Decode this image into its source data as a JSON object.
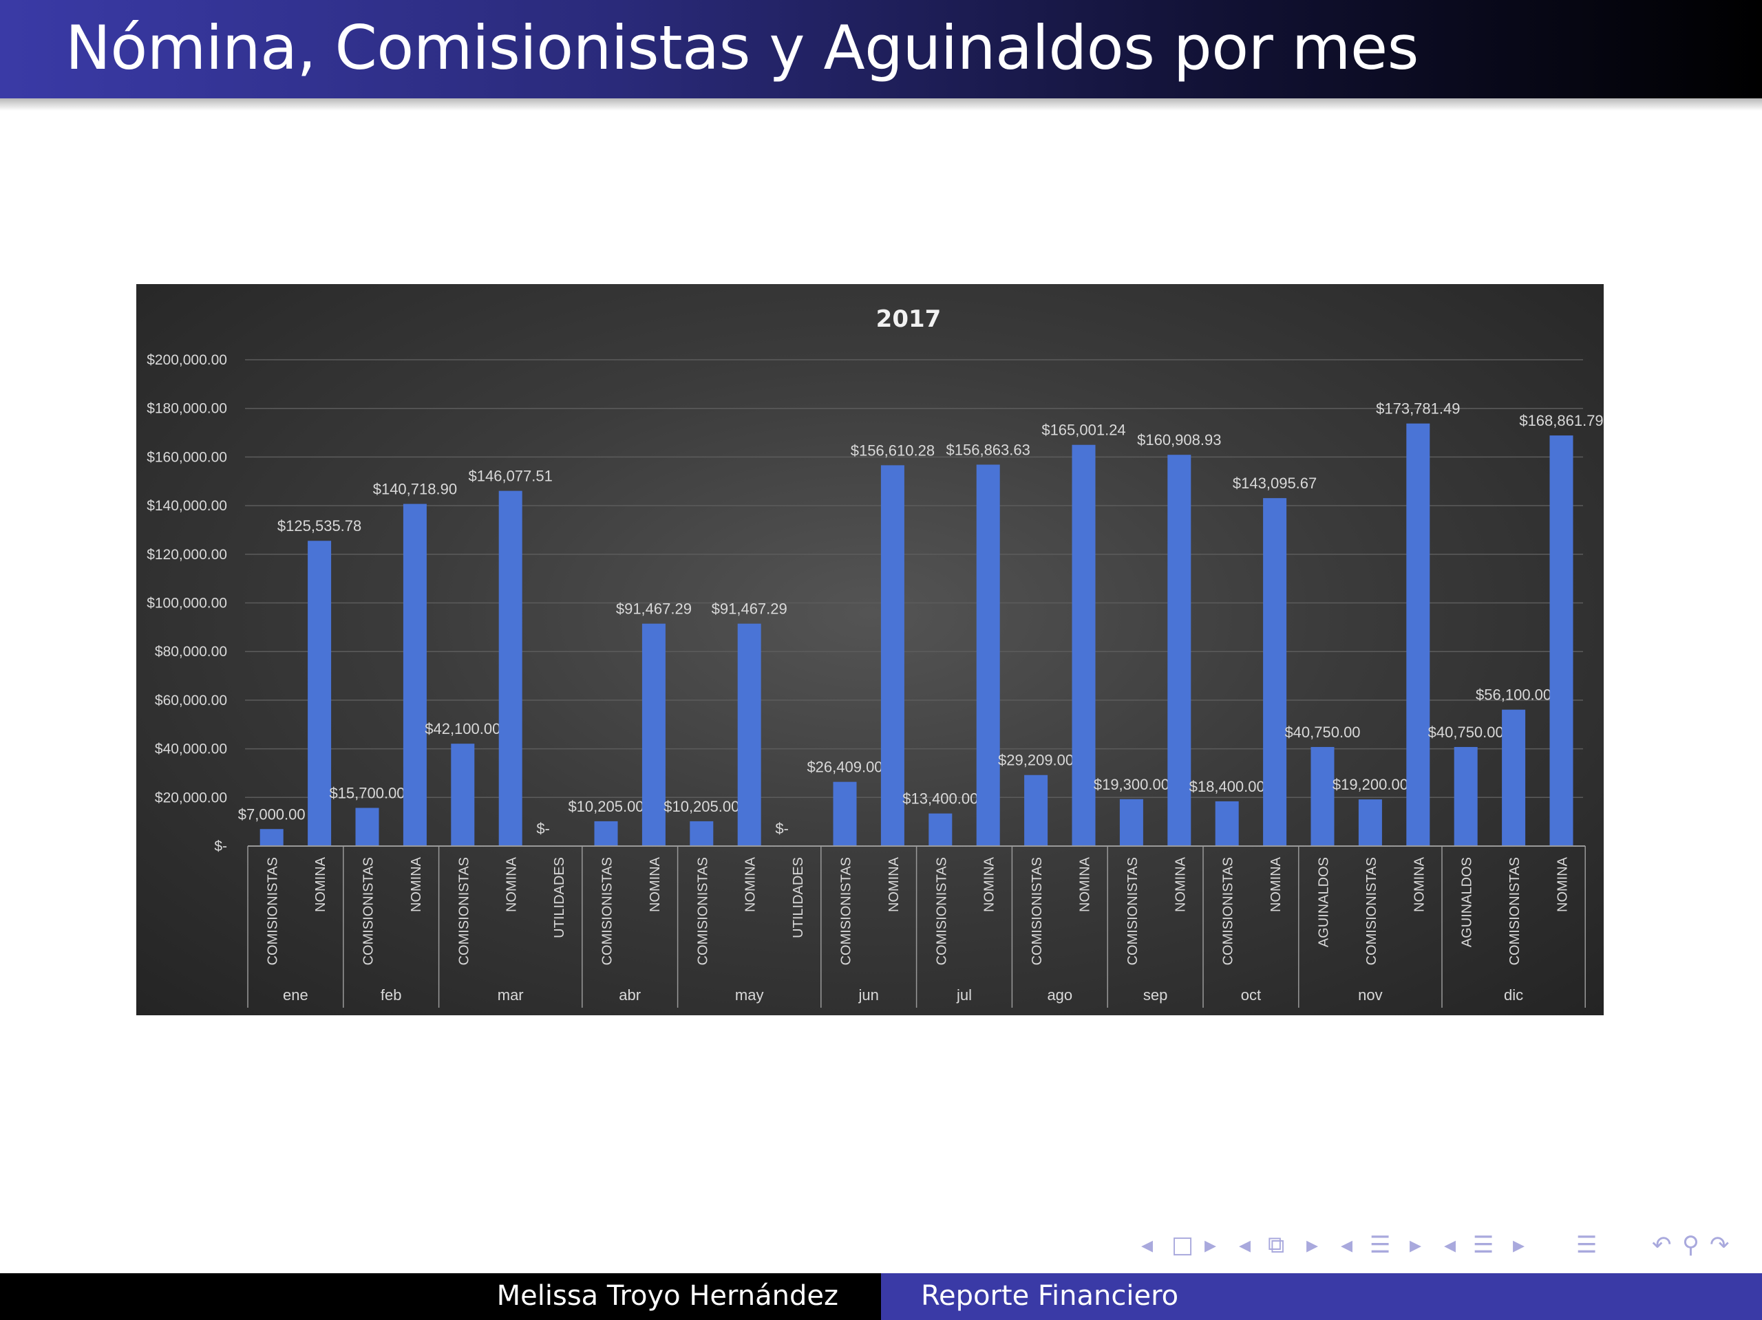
{
  "slide": {
    "title": "Nómina, Comisionistas y Aguinaldos por mes",
    "footer_author": "Melissa Troyo Hernández",
    "footer_report": "Reporte Financiero"
  },
  "colors": {
    "bar": "#4a74d6",
    "header_blue": "#3a3aa6",
    "chart_bg": "#3b3b3b",
    "label_text": "#d9d9d9"
  },
  "nav_icons": [
    "nav-frame-prev-icon",
    "nav-frame-icon",
    "nav-frame-next-icon",
    "nav-subsection-prev-icon",
    "nav-subsection-icon",
    "nav-subsection-next-icon",
    "nav-section-prev-icon",
    "nav-section-icon",
    "nav-section-next-icon",
    "nav-doc-prev-icon",
    "nav-doc-icon",
    "nav-doc-next-icon",
    "nav-align-icon",
    "nav-back-icon",
    "nav-search-icon",
    "nav-forward-icon"
  ],
  "chart_data": {
    "type": "bar",
    "title": "2017",
    "ylim": [
      0,
      200000
    ],
    "yticks": [
      "$-",
      "$20,000.00",
      "$40,000.00",
      "$60,000.00",
      "$80,000.00",
      "$100,000.00",
      "$120,000.00",
      "$140,000.00",
      "$160,000.00",
      "$180,000.00",
      "$200,000.00"
    ],
    "grid": true,
    "legend": "none",
    "groups": [
      {
        "month": "ene",
        "bars": [
          {
            "category": "COMISIONISTAS",
            "value": 7000,
            "label": "$7,000.00"
          },
          {
            "category": "NOMINA",
            "value": 125535.78,
            "label": "$125,535.78"
          }
        ]
      },
      {
        "month": "feb",
        "bars": [
          {
            "category": "COMISIONISTAS",
            "value": 15700,
            "label": "$15,700.00"
          },
          {
            "category": "NOMINA",
            "value": 140718.9,
            "label": "$140,718.90"
          }
        ]
      },
      {
        "month": "mar",
        "bars": [
          {
            "category": "COMISIONISTAS",
            "value": 42100,
            "label": "$42,100.00"
          },
          {
            "category": "NOMINA",
            "value": 146077.51,
            "label": "$146,077.51"
          },
          {
            "category": "UTILIDADES",
            "value": 0,
            "label": "$-"
          }
        ]
      },
      {
        "month": "abr",
        "bars": [
          {
            "category": "COMISIONISTAS",
            "value": 10205,
            "label": "$10,205.00"
          },
          {
            "category": "NOMINA",
            "value": 91467.29,
            "label": "$91,467.29"
          }
        ]
      },
      {
        "month": "may",
        "bars": [
          {
            "category": "COMISIONISTAS",
            "value": 10205,
            "label": "$10,205.00"
          },
          {
            "category": "NOMINA",
            "value": 91467.29,
            "label": "$91,467.29"
          },
          {
            "category": "UTILIDADES",
            "value": 0,
            "label": "$-"
          }
        ]
      },
      {
        "month": "jun",
        "bars": [
          {
            "category": "COMISIONISTAS",
            "value": 26409,
            "label": "$26,409.00"
          },
          {
            "category": "NOMINA",
            "value": 156610.28,
            "label": "$156,610.28"
          }
        ]
      },
      {
        "month": "jul",
        "bars": [
          {
            "category": "COMISIONISTAS",
            "value": 13400,
            "label": "$13,400.00"
          },
          {
            "category": "NOMINA",
            "value": 156863.63,
            "label": "$156,863.63"
          }
        ]
      },
      {
        "month": "ago",
        "bars": [
          {
            "category": "COMISIONISTAS",
            "value": 29209,
            "label": "$29,209.00"
          },
          {
            "category": "NOMINA",
            "value": 165001.24,
            "label": "$165,001.24"
          }
        ]
      },
      {
        "month": "sep",
        "bars": [
          {
            "category": "COMISIONISTAS",
            "value": 19300,
            "label": "$19,300.00"
          },
          {
            "category": "NOMINA",
            "value": 160908.93,
            "label": "$160,908.93"
          }
        ]
      },
      {
        "month": "oct",
        "bars": [
          {
            "category": "COMISIONISTAS",
            "value": 18400,
            "label": "$18,400.00"
          },
          {
            "category": "NOMINA",
            "value": 143095.67,
            "label": "$143,095.67"
          }
        ]
      },
      {
        "month": "nov",
        "bars": [
          {
            "category": "AGUINALDOS",
            "value": 40750,
            "label": "$40,750.00"
          },
          {
            "category": "COMISIONISTAS",
            "value": 19200,
            "label": "$19,200.00"
          },
          {
            "category": "NOMINA",
            "value": 173781.49,
            "label": "$173,781.49"
          }
        ]
      },
      {
        "month": "dic",
        "bars": [
          {
            "category": "AGUINALDOS",
            "value": 40750,
            "label": "$40,750.00"
          },
          {
            "category": "COMISIONISTAS",
            "value": 56100,
            "label": "$56,100.00"
          },
          {
            "category": "NOMINA",
            "value": 168861.79,
            "label": "$168,861.79"
          }
        ]
      }
    ]
  }
}
